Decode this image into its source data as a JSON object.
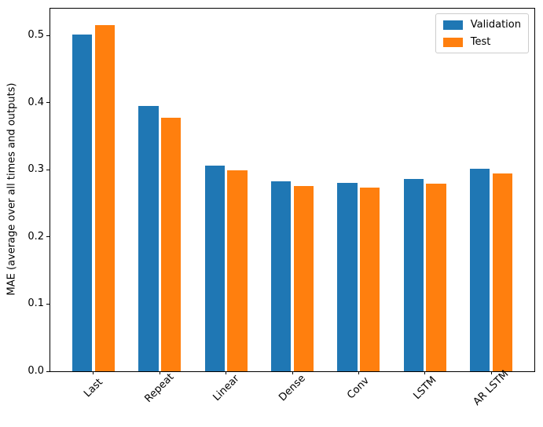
{
  "chart_data": {
    "type": "bar",
    "title": "",
    "xlabel": "",
    "ylabel": "MAE (average over all times and outputs)",
    "categories": [
      "Last",
      "Repeat",
      "Linear",
      "Dense",
      "Conv",
      "LSTM",
      "AR LSTM"
    ],
    "series": [
      {
        "name": "Validation",
        "color": "#1f77b4",
        "values": [
          0.502,
          0.395,
          0.306,
          0.283,
          0.28,
          0.286,
          0.301
        ]
      },
      {
        "name": "Test",
        "color": "#ff7f0e",
        "values": [
          0.515,
          0.377,
          0.299,
          0.276,
          0.274,
          0.279,
          0.294
        ]
      }
    ],
    "ylim": [
      0,
      0.54
    ],
    "yticks": [
      "0.0",
      "0.1",
      "0.2",
      "0.3",
      "0.4",
      "0.5"
    ],
    "ytick_values": [
      0.0,
      0.1,
      0.2,
      0.3,
      0.4,
      0.5
    ],
    "x_tick_rotation": 45,
    "bar_width_units": 0.3,
    "bar_offsets_units": [
      -0.17,
      0.17
    ],
    "grid": false,
    "legend_position": "upper right",
    "spine_color": "#000000",
    "background_color": "#ffffff"
  }
}
